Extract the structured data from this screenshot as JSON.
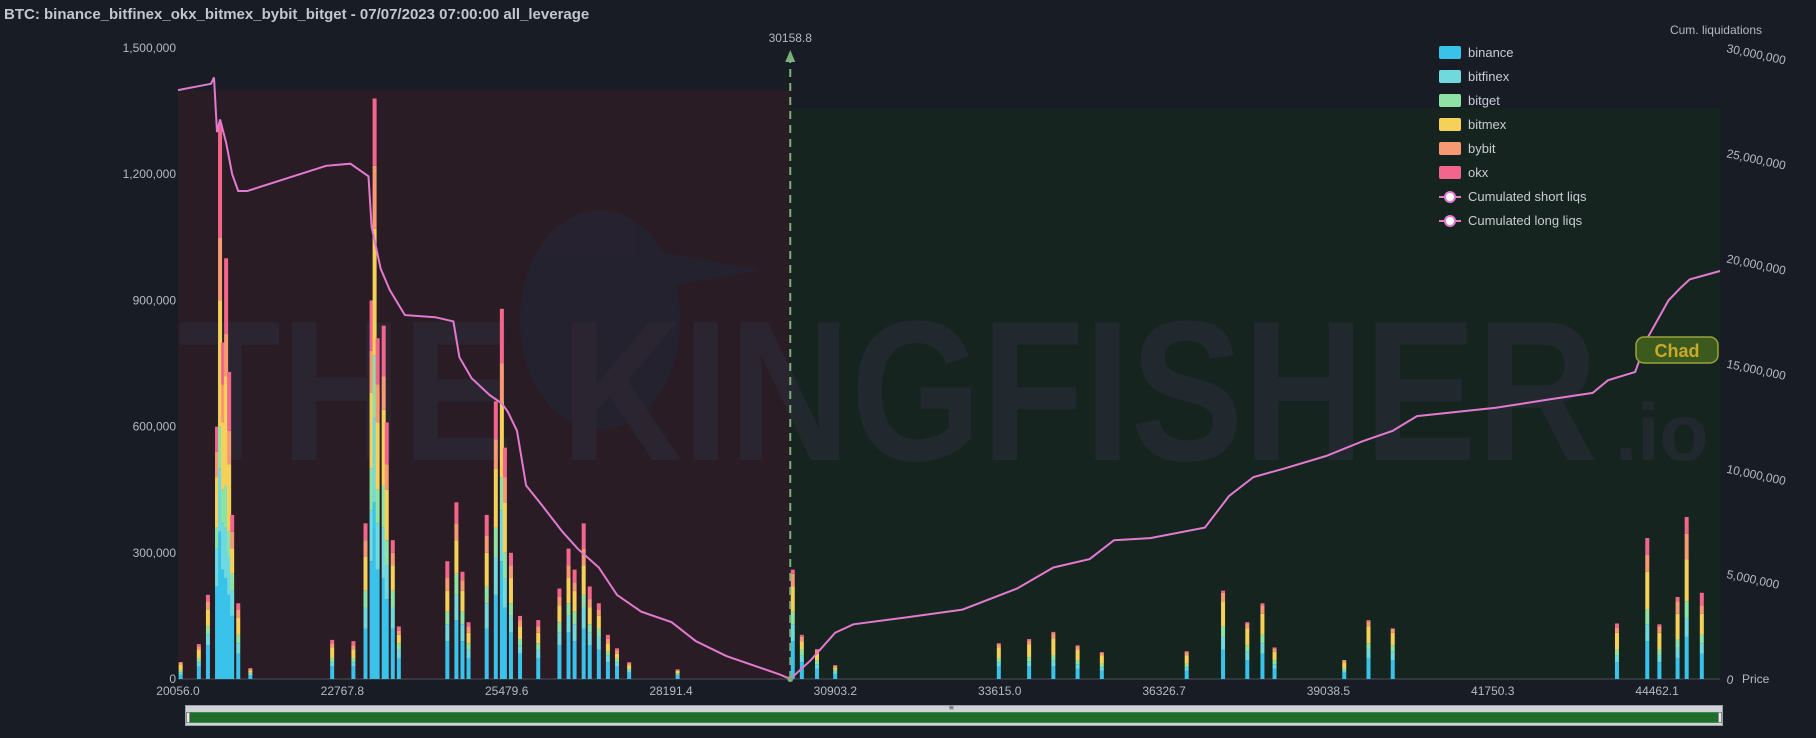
{
  "header": {
    "title": "BTC: binance_bitfinex_okx_bitmex_bybit_bitget - 07/07/2023 07:00:00 all_leverage"
  },
  "watermark": {
    "brand": "THE KINGFISHER",
    "suffix": ".io"
  },
  "badge": {
    "label": "Chad"
  },
  "current_price": {
    "label": "30158.8"
  },
  "colors": {
    "background": "#181c25",
    "short_zone": "#2a1c25",
    "long_zone": "#16241f",
    "cumulative_line": "#e27ad0",
    "price_line": "#7bb07b",
    "binance": "#39c3ea",
    "bitfinex": "#6fd9de",
    "bitget": "#8ee3a4",
    "bitmex": "#f6d15a",
    "bybit": "#f79a74",
    "okx": "#f2668b"
  },
  "legend": {
    "items": [
      {
        "key": "binance",
        "label": "binance",
        "icon": "swatch-icon"
      },
      {
        "key": "bitfinex",
        "label": "bitfinex",
        "icon": "swatch-icon"
      },
      {
        "key": "bitget",
        "label": "bitget",
        "icon": "swatch-icon"
      },
      {
        "key": "bitmex",
        "label": "bitmex",
        "icon": "swatch-icon"
      },
      {
        "key": "bybit",
        "label": "bybit",
        "icon": "swatch-icon"
      },
      {
        "key": "okx",
        "label": "okx",
        "icon": "swatch-icon"
      },
      {
        "key": "short",
        "label": "Cumulated short liqs",
        "icon": "line-marker-icon"
      },
      {
        "key": "long",
        "label": "Cumulated long liqs",
        "icon": "line-marker-icon"
      }
    ]
  },
  "scrollbar": {
    "range": [
      0,
      1
    ]
  },
  "chart_data": {
    "type": "bar",
    "xlabel": "Price",
    "ylabel": "",
    "y2label": "Cum. liquidations",
    "xlim": [
      20056.0,
      45500
    ],
    "ylim": [
      0,
      1500000
    ],
    "y2lim": [
      0,
      30000000
    ],
    "x_ticks": [
      "20056.0",
      "22767.8",
      "25479.6",
      "28191.4",
      "30903.2",
      "33615.0",
      "36326.7",
      "39038.5",
      "41750.3",
      "44462.1"
    ],
    "y_ticks": [
      "0",
      "300,000",
      "600,000",
      "900,000",
      "1,200,000",
      "1,500,000"
    ],
    "y2_ticks": [
      "0",
      "5,000,000",
      "10,000,000",
      "15,000,000",
      "20,000,000",
      "25,000,000",
      "30,000,000"
    ],
    "current_price": 30158.8,
    "stacked": true,
    "series_order": [
      "binance",
      "bitfinex",
      "bitget",
      "bitmex",
      "bybit",
      "okx"
    ],
    "bins": [
      {
        "x": 20100,
        "binance": 10000,
        "bitfinex": 5000,
        "bitget": 5000,
        "bitmex": 15000,
        "bybit": 5000,
        "okx": 0
      },
      {
        "x": 20400,
        "binance": 30000,
        "bitfinex": 10000,
        "bitget": 10000,
        "bitmex": 20000,
        "bybit": 8000,
        "okx": 5000
      },
      {
        "x": 20550,
        "binance": 80000,
        "bitfinex": 25000,
        "bitget": 20000,
        "bitmex": 40000,
        "bybit": 20000,
        "okx": 15000
      },
      {
        "x": 20700,
        "binance": 220000,
        "bitfinex": 90000,
        "bitget": 50000,
        "bitmex": 120000,
        "bybit": 60000,
        "okx": 60000
      },
      {
        "x": 20750,
        "binance": 350000,
        "bitfinex": 150000,
        "bitget": 100000,
        "bitmex": 300000,
        "bybit": 150000,
        "okx": 270000
      },
      {
        "x": 20800,
        "binance": 260000,
        "bitfinex": 110000,
        "bitget": 80000,
        "bitmex": 160000,
        "bybit": 90000,
        "okx": 100000
      },
      {
        "x": 20850,
        "binance": 240000,
        "bitfinex": 120000,
        "bitget": 100000,
        "bitmex": 260000,
        "bybit": 100000,
        "okx": 180000
      },
      {
        "x": 20900,
        "binance": 200000,
        "bitfinex": 90000,
        "bitget": 60000,
        "bitmex": 160000,
        "bybit": 80000,
        "okx": 140000
      },
      {
        "x": 20950,
        "binance": 150000,
        "bitfinex": 60000,
        "bitget": 40000,
        "bitmex": 60000,
        "bybit": 40000,
        "okx": 40000
      },
      {
        "x": 21050,
        "binance": 60000,
        "bitfinex": 25000,
        "bitget": 20000,
        "bitmex": 40000,
        "bybit": 20000,
        "okx": 15000
      },
      {
        "x": 21250,
        "binance": 8000,
        "bitfinex": 4000,
        "bitget": 3000,
        "bitmex": 6000,
        "bybit": 3000,
        "okx": 2000
      },
      {
        "x": 22600,
        "binance": 30000,
        "bitfinex": 10000,
        "bitget": 10000,
        "bitmex": 25000,
        "bybit": 10000,
        "okx": 8000
      },
      {
        "x": 22950,
        "binance": 30000,
        "bitfinex": 10000,
        "bitget": 10000,
        "bitmex": 20000,
        "bybit": 10000,
        "okx": 10000
      },
      {
        "x": 23150,
        "binance": 120000,
        "bitfinex": 50000,
        "bitget": 40000,
        "bitmex": 80000,
        "bybit": 40000,
        "okx": 40000
      },
      {
        "x": 23250,
        "binance": 280000,
        "bitfinex": 120000,
        "bitget": 100000,
        "bitmex": 180000,
        "bybit": 100000,
        "okx": 120000
      },
      {
        "x": 23300,
        "binance": 420000,
        "bitfinex": 200000,
        "bitget": 150000,
        "bitmex": 300000,
        "bybit": 150000,
        "okx": 160000
      },
      {
        "x": 23350,
        "binance": 260000,
        "bitfinex": 110000,
        "bitget": 80000,
        "bitmex": 160000,
        "bybit": 90000,
        "okx": 110000
      },
      {
        "x": 23450,
        "binance": 240000,
        "bitfinex": 120000,
        "bitget": 100000,
        "bitmex": 180000,
        "bybit": 80000,
        "okx": 120000
      },
      {
        "x": 23500,
        "binance": 190000,
        "bitfinex": 80000,
        "bitget": 60000,
        "bitmex": 120000,
        "bybit": 60000,
        "okx": 100000
      },
      {
        "x": 23600,
        "binance": 120000,
        "bitfinex": 50000,
        "bitget": 40000,
        "bitmex": 60000,
        "bybit": 30000,
        "okx": 30000
      },
      {
        "x": 23700,
        "binance": 50000,
        "bitfinex": 20000,
        "bitget": 15000,
        "bitmex": 20000,
        "bybit": 10000,
        "okx": 10000
      },
      {
        "x": 24500,
        "binance": 90000,
        "bitfinex": 40000,
        "bitget": 30000,
        "bitmex": 50000,
        "bybit": 30000,
        "okx": 40000
      },
      {
        "x": 24650,
        "binance": 140000,
        "bitfinex": 60000,
        "bitget": 50000,
        "bitmex": 80000,
        "bybit": 40000,
        "okx": 50000
      },
      {
        "x": 24750,
        "binance": 90000,
        "bitfinex": 40000,
        "bitget": 30000,
        "bitmex": 50000,
        "bybit": 25000,
        "okx": 20000
      },
      {
        "x": 24850,
        "binance": 50000,
        "bitfinex": 20000,
        "bitget": 15000,
        "bitmex": 25000,
        "bybit": 15000,
        "okx": 10000
      },
      {
        "x": 25150,
        "binance": 120000,
        "bitfinex": 60000,
        "bitget": 40000,
        "bitmex": 80000,
        "bybit": 40000,
        "okx": 50000
      },
      {
        "x": 25300,
        "binance": 200000,
        "bitfinex": 90000,
        "bitget": 70000,
        "bitmex": 140000,
        "bybit": 70000,
        "okx": 90000
      },
      {
        "x": 25400,
        "binance": 280000,
        "bitfinex": 120000,
        "bitget": 80000,
        "bitmex": 180000,
        "bybit": 90000,
        "okx": 130000
      },
      {
        "x": 25450,
        "binance": 170000,
        "bitfinex": 70000,
        "bitget": 60000,
        "bitmex": 120000,
        "bybit": 60000,
        "okx": 70000
      },
      {
        "x": 25550,
        "binance": 110000,
        "bitfinex": 40000,
        "bitget": 30000,
        "bitmex": 60000,
        "bybit": 30000,
        "okx": 30000
      },
      {
        "x": 25700,
        "binance": 60000,
        "bitfinex": 20000,
        "bitget": 15000,
        "bitmex": 30000,
        "bybit": 15000,
        "okx": 10000
      },
      {
        "x": 26000,
        "binance": 50000,
        "bitfinex": 20000,
        "bitget": 15000,
        "bitmex": 25000,
        "bybit": 15000,
        "okx": 15000
      },
      {
        "x": 26350,
        "binance": 80000,
        "bitfinex": 30000,
        "bitget": 25000,
        "bitmex": 40000,
        "bybit": 20000,
        "okx": 20000
      },
      {
        "x": 26500,
        "binance": 110000,
        "bitfinex": 40000,
        "bitget": 30000,
        "bitmex": 60000,
        "bybit": 30000,
        "okx": 40000
      },
      {
        "x": 26600,
        "binance": 90000,
        "bitfinex": 40000,
        "bitget": 30000,
        "bitmex": 50000,
        "bybit": 20000,
        "okx": 30000
      },
      {
        "x": 26750,
        "binance": 120000,
        "bitfinex": 50000,
        "bitget": 30000,
        "bitmex": 70000,
        "bybit": 40000,
        "okx": 60000
      },
      {
        "x": 26850,
        "binance": 80000,
        "bitfinex": 30000,
        "bitget": 20000,
        "bitmex": 40000,
        "bybit": 20000,
        "okx": 30000
      },
      {
        "x": 27000,
        "binance": 70000,
        "bitfinex": 30000,
        "bitget": 20000,
        "bitmex": 30000,
        "bybit": 15000,
        "okx": 15000
      },
      {
        "x": 27150,
        "binance": 40000,
        "bitfinex": 15000,
        "bitget": 10000,
        "bitmex": 20000,
        "bybit": 10000,
        "okx": 10000
      },
      {
        "x": 27300,
        "binance": 30000,
        "bitfinex": 10000,
        "bitget": 8000,
        "bitmex": 12000,
        "bybit": 8000,
        "okx": 5000
      },
      {
        "x": 27500,
        "binance": 15000,
        "bitfinex": 5000,
        "bitget": 5000,
        "bitmex": 8000,
        "bybit": 4000,
        "okx": 3000
      },
      {
        "x": 28300,
        "binance": 8000,
        "bitfinex": 3000,
        "bitget": 3000,
        "bitmex": 5000,
        "bybit": 2000,
        "okx": 2000
      },
      {
        "x": 30200,
        "binance": 90000,
        "bitfinex": 40000,
        "bitget": 30000,
        "bitmex": 60000,
        "bybit": 30000,
        "okx": 10000
      },
      {
        "x": 30350,
        "binance": 40000,
        "bitfinex": 15000,
        "bitget": 15000,
        "bitmex": 20000,
        "bybit": 10000,
        "okx": 5000
      },
      {
        "x": 30600,
        "binance": 25000,
        "bitfinex": 10000,
        "bitget": 10000,
        "bitmex": 15000,
        "bybit": 8000,
        "okx": 3000
      },
      {
        "x": 30900,
        "binance": 12000,
        "bitfinex": 5000,
        "bitget": 5000,
        "bitmex": 6000,
        "bybit": 3000,
        "okx": 2000
      },
      {
        "x": 33600,
        "binance": 30000,
        "bitfinex": 10000,
        "bitget": 10000,
        "bitmex": 25000,
        "bybit": 8000,
        "okx": 2000
      },
      {
        "x": 34100,
        "binance": 30000,
        "bitfinex": 12000,
        "bitget": 10000,
        "bitmex": 30000,
        "bybit": 10000,
        "okx": 3000
      },
      {
        "x": 34500,
        "binance": 30000,
        "bitfinex": 15000,
        "bitget": 12000,
        "bitmex": 40000,
        "bybit": 12000,
        "okx": 3000
      },
      {
        "x": 34900,
        "binance": 25000,
        "bitfinex": 10000,
        "bitget": 10000,
        "bitmex": 25000,
        "bybit": 8000,
        "okx": 2000
      },
      {
        "x": 35300,
        "binance": 20000,
        "bitfinex": 8000,
        "bitget": 8000,
        "bitmex": 20000,
        "bybit": 6000,
        "okx": 2000
      },
      {
        "x": 36700,
        "binance": 20000,
        "bitfinex": 8000,
        "bitget": 8000,
        "bitmex": 20000,
        "bybit": 8000,
        "okx": 2000
      },
      {
        "x": 37300,
        "binance": 70000,
        "bitfinex": 30000,
        "bitget": 25000,
        "bitmex": 60000,
        "bybit": 20000,
        "okx": 5000
      },
      {
        "x": 37700,
        "binance": 45000,
        "bitfinex": 20000,
        "bitget": 15000,
        "bitmex": 40000,
        "bybit": 12000,
        "okx": 3000
      },
      {
        "x": 37950,
        "binance": 60000,
        "bitfinex": 25000,
        "bitget": 20000,
        "bitmex": 50000,
        "bybit": 20000,
        "okx": 5000
      },
      {
        "x": 38150,
        "binance": 25000,
        "bitfinex": 10000,
        "bitget": 10000,
        "bitmex": 20000,
        "bybit": 8000,
        "okx": 2000
      },
      {
        "x": 39300,
        "binance": 15000,
        "bitfinex": 5000,
        "bitget": 5000,
        "bitmex": 15000,
        "bybit": 5000,
        "okx": 0
      },
      {
        "x": 39700,
        "binance": 50000,
        "bitfinex": 20000,
        "bitget": 15000,
        "bitmex": 40000,
        "bybit": 12000,
        "okx": 3000
      },
      {
        "x": 40100,
        "binance": 45000,
        "bitfinex": 20000,
        "bitget": 15000,
        "bitmex": 30000,
        "bybit": 10000,
        "okx": 0
      },
      {
        "x": 43800,
        "binance": 40000,
        "bitfinex": 15000,
        "bitget": 15000,
        "bitmex": 40000,
        "bybit": 12000,
        "okx": 10000
      },
      {
        "x": 44300,
        "binance": 90000,
        "bitfinex": 40000,
        "bitget": 35000,
        "bitmex": 90000,
        "bybit": 40000,
        "okx": 40000
      },
      {
        "x": 44500,
        "binance": 40000,
        "bitfinex": 15000,
        "bitget": 15000,
        "bitmex": 40000,
        "bybit": 15000,
        "okx": 5000
      },
      {
        "x": 44800,
        "binance": 50000,
        "bitfinex": 25000,
        "bitget": 20000,
        "bitmex": 60000,
        "bybit": 30000,
        "okx": 10000
      },
      {
        "x": 44950,
        "binance": 100000,
        "bitfinex": 45000,
        "bitget": 40000,
        "bitmex": 100000,
        "bybit": 60000,
        "okx": 40000
      },
      {
        "x": 45200,
        "binance": 60000,
        "bitfinex": 25000,
        "bitget": 20000,
        "bitmex": 50000,
        "bybit": 20000,
        "okx": 30000
      }
    ],
    "series": [
      {
        "name": "Cumulated short liqs",
        "points": [
          [
            20056,
            28000000
          ],
          [
            20600,
            28300000
          ],
          [
            20650,
            28600000
          ],
          [
            20700,
            26000000
          ],
          [
            20750,
            26600000
          ],
          [
            20850,
            25500000
          ],
          [
            20950,
            24000000
          ],
          [
            21050,
            23200000
          ],
          [
            21200,
            23200000
          ],
          [
            22500,
            24400000
          ],
          [
            22900,
            24500000
          ],
          [
            23200,
            23900000
          ],
          [
            23250,
            21500000
          ],
          [
            23400,
            19500000
          ],
          [
            23550,
            18500000
          ],
          [
            23800,
            17300000
          ],
          [
            24300,
            17200000
          ],
          [
            24600,
            17000000
          ],
          [
            24700,
            15300000
          ],
          [
            24900,
            14300000
          ],
          [
            25200,
            13500000
          ],
          [
            25400,
            13100000
          ],
          [
            25500,
            12700000
          ],
          [
            25650,
            11800000
          ],
          [
            25800,
            9200000
          ],
          [
            26050,
            8300000
          ],
          [
            26400,
            7000000
          ],
          [
            26650,
            6200000
          ],
          [
            27000,
            5300000
          ],
          [
            27300,
            4000000
          ],
          [
            27700,
            3200000
          ],
          [
            28200,
            2700000
          ],
          [
            28600,
            1800000
          ],
          [
            29100,
            1100000
          ],
          [
            29600,
            600000
          ],
          [
            30000,
            200000
          ],
          [
            30158.8,
            0
          ]
        ]
      },
      {
        "name": "Cumulated long liqs",
        "points": [
          [
            30158.8,
            0
          ],
          [
            30500,
            900000
          ],
          [
            30900,
            2200000
          ],
          [
            31200,
            2600000
          ],
          [
            32000,
            2900000
          ],
          [
            33000,
            3300000
          ],
          [
            33900,
            4300000
          ],
          [
            34500,
            5300000
          ],
          [
            35100,
            5700000
          ],
          [
            35500,
            6600000
          ],
          [
            36100,
            6700000
          ],
          [
            37000,
            7200000
          ],
          [
            37400,
            8700000
          ],
          [
            37800,
            9600000
          ],
          [
            38300,
            10000000
          ],
          [
            39000,
            10600000
          ],
          [
            39600,
            11300000
          ],
          [
            40100,
            11800000
          ],
          [
            40500,
            12500000
          ],
          [
            41800,
            12900000
          ],
          [
            42700,
            13300000
          ],
          [
            43400,
            13600000
          ],
          [
            43650,
            14200000
          ],
          [
            44100,
            14600000
          ],
          [
            44300,
            16200000
          ],
          [
            44650,
            18000000
          ],
          [
            44850,
            18600000
          ],
          [
            45000,
            19000000
          ],
          [
            45500,
            19400000
          ]
        ]
      }
    ]
  }
}
